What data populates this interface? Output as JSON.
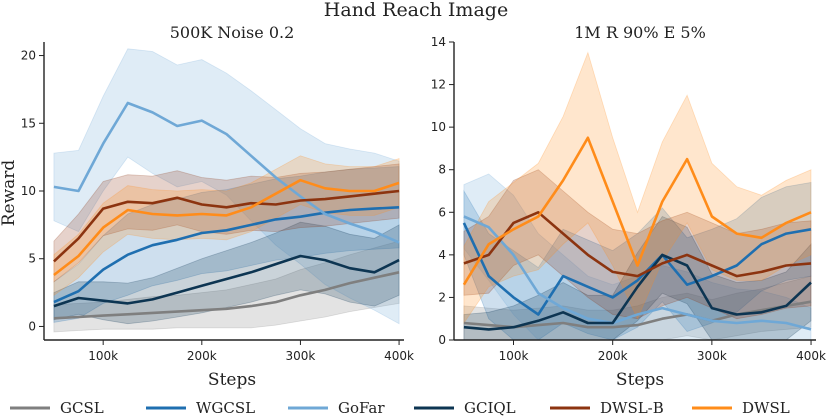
{
  "figure_title": "Hand Reach Image",
  "x_axis_label": "Steps",
  "y_axis_label": "Reward",
  "series_colors": {
    "GCSL": "#7f7f7f",
    "WGCSL": "#1f6fb0",
    "GoFar": "#6fa8d6",
    "GCIQL": "#0d3552",
    "DWSL-B": "#8c3410",
    "DWSL": "#ff8c1a"
  },
  "legend": [
    "GCSL",
    "WGCSL",
    "GoFar",
    "GCIQL",
    "DWSL-B",
    "DWSL"
  ],
  "chart_data": [
    {
      "type": "line",
      "title": "500K Noise 0.2",
      "xlabel": "Steps",
      "ylabel": "Reward",
      "xlim": [
        40000,
        405000
      ],
      "ylim": [
        -1,
        21
      ],
      "xticks": [
        100000,
        200000,
        300000,
        400000
      ],
      "xtick_labels": [
        "100k",
        "200k",
        "300k",
        "400k"
      ],
      "yticks": [
        0,
        5,
        10,
        15,
        20
      ],
      "ytick_labels": [
        "0",
        "5",
        "10",
        "15",
        "20"
      ],
      "x": [
        50000,
        75000,
        100000,
        125000,
        150000,
        175000,
        200000,
        225000,
        250000,
        275000,
        300000,
        325000,
        350000,
        375000,
        400000
      ],
      "series": [
        {
          "name": "GCSL",
          "values": [
            0.6,
            0.7,
            0.8,
            0.9,
            1.0,
            1.1,
            1.2,
            1.3,
            1.5,
            1.8,
            2.3,
            2.7,
            3.2,
            3.6,
            4.0
          ],
          "band": [
            1.0,
            1.0,
            1.0,
            1.1,
            1.2,
            1.2,
            1.3,
            1.4,
            1.6,
            1.7,
            1.9,
            2.0,
            2.1,
            2.2,
            2.3
          ]
        },
        {
          "name": "WGCSL",
          "values": [
            1.8,
            2.6,
            4.2,
            5.3,
            6.0,
            6.4,
            6.9,
            7.1,
            7.5,
            7.9,
            8.1,
            8.4,
            8.6,
            8.7,
            8.8
          ],
          "band": [
            1.5,
            2.0,
            2.5,
            3.0,
            3.0,
            3.0,
            3.0,
            3.0,
            3.0,
            3.0,
            3.0,
            3.0,
            3.0,
            3.0,
            3.0
          ]
        },
        {
          "name": "GoFar",
          "values": [
            10.3,
            10.0,
            13.5,
            16.5,
            15.8,
            14.8,
            15.2,
            14.2,
            12.6,
            11.0,
            9.6,
            8.3,
            7.6,
            7.0,
            6.2
          ],
          "band": [
            2.5,
            3.0,
            3.5,
            4.0,
            4.5,
            4.5,
            4.5,
            4.5,
            4.8,
            5.0,
            5.0,
            5.2,
            5.5,
            5.8,
            6.0
          ]
        },
        {
          "name": "GCIQL",
          "values": [
            1.5,
            2.1,
            1.9,
            1.7,
            2.0,
            2.5,
            3.0,
            3.5,
            4.0,
            4.6,
            5.2,
            4.9,
            4.3,
            4.0,
            4.9
          ],
          "band": [
            1.0,
            1.2,
            1.4,
            1.5,
            1.6,
            1.8,
            2.0,
            2.1,
            2.2,
            2.3,
            2.5,
            2.5,
            2.5,
            2.5,
            2.6
          ]
        },
        {
          "name": "DWSL-B",
          "values": [
            4.8,
            6.5,
            8.7,
            9.2,
            9.1,
            9.5,
            9.0,
            8.8,
            9.1,
            9.0,
            9.3,
            9.4,
            9.6,
            9.8,
            10.0
          ],
          "band": [
            1.5,
            1.8,
            2.0,
            2.0,
            2.0,
            2.0,
            2.0,
            2.0,
            2.0,
            2.0,
            2.0,
            2.0,
            2.0,
            2.0,
            2.0
          ]
        },
        {
          "name": "DWSL",
          "values": [
            3.8,
            5.2,
            7.3,
            8.6,
            8.3,
            8.2,
            8.3,
            8.2,
            8.8,
            9.8,
            10.8,
            10.2,
            10.0,
            10.0,
            10.6
          ],
          "band": [
            1.5,
            1.6,
            1.8,
            1.8,
            1.8,
            1.8,
            1.8,
            1.8,
            1.8,
            1.8,
            1.8,
            1.8,
            1.8,
            1.8,
            1.8
          ]
        }
      ]
    },
    {
      "type": "line",
      "title": "1M R 90% E 5%",
      "xlabel": "Steps",
      "ylabel": "",
      "xlim": [
        40000,
        405000
      ],
      "ylim": [
        0,
        14
      ],
      "xticks": [
        100000,
        200000,
        300000,
        400000
      ],
      "xtick_labels": [
        "100k",
        "200k",
        "300k",
        "400k"
      ],
      "yticks": [
        0,
        2,
        4,
        6,
        8,
        10,
        12,
        14
      ],
      "ytick_labels": [
        "0",
        "2",
        "4",
        "6",
        "8",
        "10",
        "12",
        "14"
      ],
      "x": [
        50000,
        75000,
        100000,
        125000,
        150000,
        175000,
        200000,
        225000,
        250000,
        275000,
        300000,
        325000,
        350000,
        375000,
        400000
      ],
      "series": [
        {
          "name": "GCSL",
          "values": [
            0.8,
            0.7,
            0.6,
            0.7,
            0.8,
            0.6,
            0.6,
            0.7,
            1.0,
            1.2,
            0.9,
            1.2,
            1.4,
            1.6,
            1.8
          ],
          "band": [
            0.8,
            0.8,
            0.8,
            0.8,
            0.8,
            0.8,
            0.8,
            0.9,
            1.0,
            1.0,
            1.0,
            1.0,
            1.0,
            1.1,
            1.2
          ]
        },
        {
          "name": "WGCSL",
          "values": [
            5.5,
            3.0,
            2.0,
            1.2,
            3.0,
            2.5,
            2.0,
            2.8,
            4.0,
            2.6,
            3.0,
            3.5,
            4.5,
            5.0,
            5.2
          ],
          "band": [
            1.5,
            2.0,
            2.2,
            2.2,
            2.2,
            2.2,
            2.2,
            2.2,
            2.2,
            2.2,
            2.2,
            2.2,
            2.2,
            2.2,
            2.2
          ]
        },
        {
          "name": "GoFar",
          "values": [
            5.8,
            5.3,
            4.0,
            2.2,
            1.5,
            1.0,
            0.8,
            1.2,
            1.5,
            1.2,
            0.9,
            0.8,
            0.9,
            0.8,
            0.5
          ],
          "band": [
            1.5,
            2.5,
            2.8,
            2.8,
            2.5,
            2.0,
            1.8,
            1.8,
            2.0,
            2.0,
            1.8,
            1.6,
            1.4,
            1.2,
            1.0
          ]
        },
        {
          "name": "GCIQL",
          "values": [
            0.6,
            0.5,
            0.6,
            0.9,
            1.3,
            0.8,
            0.8,
            2.5,
            4.0,
            3.5,
            1.5,
            1.2,
            1.3,
            1.6,
            2.7
          ],
          "band": [
            0.6,
            0.8,
            1.0,
            1.2,
            1.4,
            1.3,
            1.3,
            1.6,
            1.8,
            1.8,
            1.6,
            1.5,
            1.5,
            1.6,
            1.8
          ]
        },
        {
          "name": "DWSL-B",
          "values": [
            3.6,
            4.0,
            5.5,
            6.0,
            5.0,
            4.0,
            3.2,
            3.0,
            3.6,
            4.0,
            3.5,
            3.0,
            3.2,
            3.5,
            3.6
          ],
          "band": [
            1.5,
            1.8,
            2.0,
            2.0,
            2.0,
            2.0,
            2.0,
            2.0,
            2.0,
            2.0,
            2.0,
            2.0,
            2.0,
            2.0,
            2.0
          ]
        },
        {
          "name": "DWSL",
          "values": [
            2.6,
            4.5,
            5.2,
            5.8,
            7.5,
            9.5,
            6.5,
            3.5,
            6.5,
            8.5,
            5.8,
            5.0,
            4.8,
            5.5,
            6.0
          ],
          "band": [
            1.8,
            2.0,
            2.2,
            2.5,
            3.0,
            4.0,
            3.0,
            2.5,
            2.8,
            3.0,
            2.5,
            2.2,
            2.0,
            2.0,
            2.0
          ]
        }
      ]
    }
  ]
}
